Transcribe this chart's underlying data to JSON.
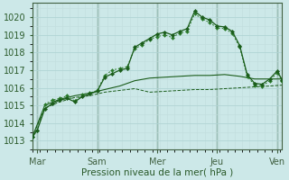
{
  "xlabel": "Pression niveau de la mer( hPa )",
  "bg_color": "#cce8e8",
  "grid_color_major": "#b0d4d4",
  "grid_color_minor": "#c0dcdc",
  "line_color_dark": "#1a5c1a",
  "line_color_mid": "#2a7a2a",
  "ylim": [
    1012.5,
    1020.8
  ],
  "xlim": [
    0,
    100
  ],
  "x_ticks": [
    2,
    26,
    50,
    74,
    98
  ],
  "x_labels": [
    "Mar",
    "Sam",
    "Mer",
    "Jeu",
    "Ven"
  ],
  "x_vlines": [
    2,
    26,
    50,
    74,
    98
  ],
  "yticks": [
    1013,
    1014,
    1015,
    1016,
    1017,
    1018,
    1019,
    1020
  ],
  "s1_x": [
    0,
    2,
    5,
    8,
    11,
    14,
    17,
    20,
    23,
    26,
    29,
    32,
    35,
    38,
    41,
    44,
    47,
    50,
    53,
    56,
    59,
    62,
    65,
    68,
    71,
    74,
    77,
    80,
    83,
    86,
    89,
    92,
    95,
    98,
    100
  ],
  "s1_y": [
    1013.2,
    1013.6,
    1014.8,
    1015.1,
    1015.3,
    1015.4,
    1015.2,
    1015.5,
    1015.65,
    1015.8,
    1016.6,
    1016.8,
    1017.0,
    1017.1,
    1018.3,
    1018.55,
    1018.8,
    1019.05,
    1019.15,
    1019.0,
    1019.2,
    1019.35,
    1020.35,
    1020.0,
    1019.85,
    1019.5,
    1019.45,
    1019.2,
    1018.4,
    1016.75,
    1016.25,
    1016.2,
    1016.5,
    1016.95,
    1016.45
  ],
  "s2_x": [
    0,
    2,
    5,
    8,
    11,
    14,
    17,
    20,
    23,
    26,
    29,
    32,
    35,
    38,
    41,
    44,
    47,
    50,
    53,
    56,
    59,
    62,
    65,
    68,
    71,
    74,
    77,
    80,
    83,
    86,
    89,
    92,
    95,
    98,
    100
  ],
  "s2_y": [
    1013.2,
    1013.6,
    1015.05,
    1015.3,
    1015.4,
    1015.55,
    1015.25,
    1015.6,
    1015.7,
    1015.85,
    1016.7,
    1017.0,
    1017.1,
    1017.2,
    1018.2,
    1018.45,
    1018.75,
    1018.9,
    1019.0,
    1018.85,
    1019.1,
    1019.2,
    1020.2,
    1019.9,
    1019.7,
    1019.4,
    1019.35,
    1019.1,
    1018.3,
    1016.65,
    1016.15,
    1016.1,
    1016.4,
    1016.85,
    1016.4
  ],
  "s3_x": [
    0,
    5,
    11,
    17,
    23,
    29,
    35,
    41,
    47,
    53,
    59,
    65,
    71,
    77,
    83,
    89,
    95,
    100
  ],
  "s3_y": [
    1013.2,
    1015.0,
    1015.35,
    1015.55,
    1015.7,
    1015.9,
    1016.1,
    1016.4,
    1016.55,
    1016.6,
    1016.65,
    1016.7,
    1016.7,
    1016.75,
    1016.65,
    1016.5,
    1016.5,
    1016.5
  ],
  "s4_x": [
    0,
    5,
    11,
    17,
    23,
    29,
    35,
    41,
    47,
    53,
    59,
    65,
    71,
    77,
    83,
    89,
    95,
    100
  ],
  "s4_y": [
    1013.2,
    1014.85,
    1015.2,
    1015.45,
    1015.55,
    1015.75,
    1015.85,
    1015.95,
    1015.75,
    1015.8,
    1015.85,
    1015.9,
    1015.9,
    1015.95,
    1016.0,
    1016.05,
    1016.1,
    1016.15
  ]
}
